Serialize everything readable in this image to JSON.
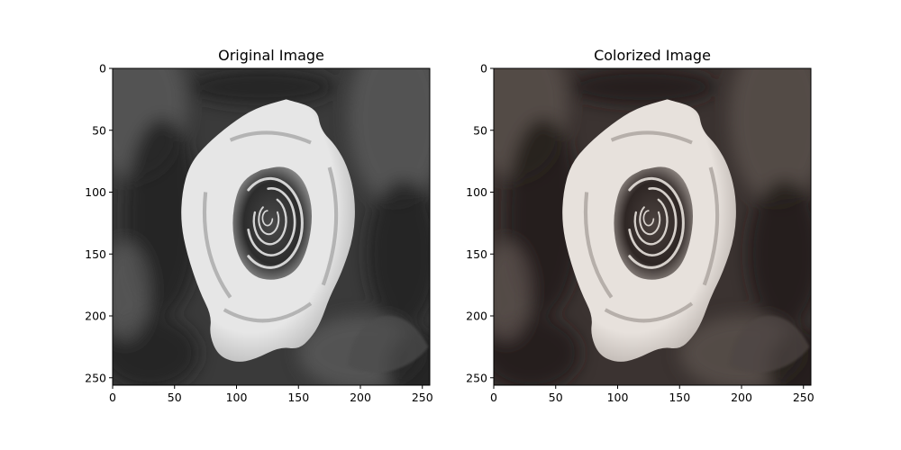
{
  "figure": {
    "background": "#ffffff"
  },
  "chart_data": [
    {
      "type": "image",
      "title": "Original Image",
      "xlabel": "",
      "ylabel": "",
      "xlim": [
        0,
        256
      ],
      "ylim": [
        256,
        0
      ],
      "xticks": [
        0,
        50,
        100,
        150,
        200,
        250
      ],
      "yticks": [
        0,
        50,
        100,
        150,
        200,
        250
      ],
      "xtick_labels": [
        "0",
        "50",
        "100",
        "150",
        "200",
        "250"
      ],
      "ytick_labels": [
        "0",
        "50",
        "100",
        "150",
        "200",
        "250"
      ],
      "grid": false,
      "content": "rose-photo",
      "palette": {
        "background": "#3a3a3a",
        "background_light": "#5a5a5a",
        "background_dark": "#1e1e1e",
        "petal_light": "#e6e6e6",
        "petal_mid": "#a8a8a8",
        "petal_dark": "#2c2c2c",
        "center": "#4a4a4a",
        "leaf": "#4e4e4e"
      }
    },
    {
      "type": "image",
      "title": "Colorized Image",
      "xlabel": "",
      "ylabel": "",
      "xlim": [
        0,
        256
      ],
      "ylim": [
        256,
        0
      ],
      "xticks": [
        0,
        50,
        100,
        150,
        200,
        250
      ],
      "yticks": [
        0,
        50,
        100,
        150,
        200,
        250
      ],
      "xtick_labels": [
        "0",
        "50",
        "100",
        "150",
        "200",
        "250"
      ],
      "ytick_labels": [
        "0",
        "50",
        "100",
        "150",
        "200",
        "250"
      ],
      "grid": false,
      "content": "rose-photo",
      "palette": {
        "background": "#3b3331",
        "background_light": "#5a514e",
        "background_dark": "#1f1816",
        "petal_light": "#e7e1dc",
        "petal_mid": "#aaa29d",
        "petal_dark": "#2e2624",
        "center": "#4c4340",
        "leaf": "#4f4744"
      }
    }
  ]
}
